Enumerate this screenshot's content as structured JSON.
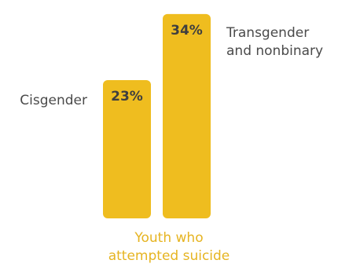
{
  "chart_data": {
    "type": "bar",
    "categories": [
      "Cisgender",
      "Transgender and nonbinary"
    ],
    "category_lines": [
      [
        "Cisgender"
      ],
      [
        "Transgender",
        "and nonbinary"
      ]
    ],
    "values": [
      23,
      34
    ],
    "value_labels": [
      "23%",
      "34%"
    ],
    "unit": "%",
    "xlabel_lines": [
      "Youth who",
      "attempted suicide"
    ],
    "ylim": [
      0,
      40
    ],
    "grid": false,
    "legend": "none",
    "bar_color": "#efbd1f",
    "label_color": "#3f3f3f",
    "category_label_color": "#4a4a4a",
    "caption_color": "#e6b421"
  }
}
